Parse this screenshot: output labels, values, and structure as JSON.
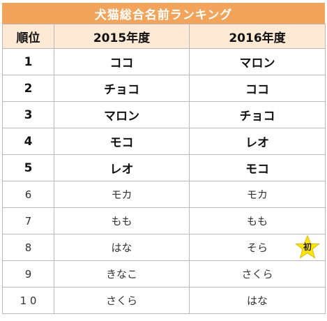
{
  "title": "犬猫総合名前ランキング",
  "header": {
    "rank": "順位",
    "year1": "2015年度",
    "year2": "2016年度"
  },
  "rows": [
    {
      "rank": "1",
      "y2015": "ココ",
      "y2016": "マロン"
    },
    {
      "rank": "2",
      "y2015": "チョコ",
      "y2016": "ココ"
    },
    {
      "rank": "3",
      "y2015": "マロン",
      "y2016": "チョコ"
    },
    {
      "rank": "4",
      "y2015": "モコ",
      "y2016": "レオ"
    },
    {
      "rank": "5",
      "y2015": "レオ",
      "y2016": "モコ"
    },
    {
      "rank": "6",
      "y2015": "モカ",
      "y2016": "モカ"
    },
    {
      "rank": "7",
      "y2015": "もも",
      "y2016": "もも"
    },
    {
      "rank": "8",
      "y2015": "はな",
      "y2016": "そら",
      "badge": "初"
    },
    {
      "rank": "9",
      "y2015": "きなこ",
      "y2016": "さくら"
    },
    {
      "rank": "1 0",
      "y2015": "さくら",
      "y2016": "はな"
    }
  ],
  "colors": {
    "title_bg": "#f2a55a",
    "header_bg": "#fde9d4",
    "badge_star": "#ffe600"
  },
  "icons": {
    "badge": "star-icon"
  }
}
